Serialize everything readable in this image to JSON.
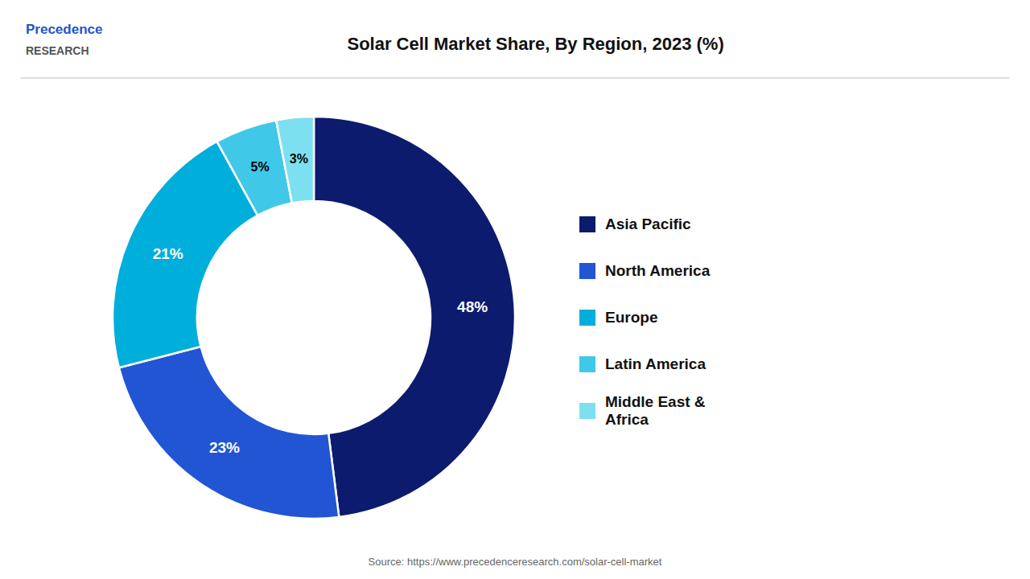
{
  "chart_data": {
    "type": "pie",
    "title": "Solar Cell Market Share, By Region, 2023 (%)",
    "categories": [
      "Asia Pacific",
      "North America",
      "Europe",
      "Latin America",
      "Middle East &\nAfrica"
    ],
    "values": [
      48,
      23,
      21,
      5,
      3
    ],
    "value_labels": [
      "48%",
      "23%",
      "21%",
      "5%",
      "3%"
    ],
    "colors": [
      "#0d1b6e",
      "#2255d4",
      "#00aedb",
      "#40c8e8",
      "#7de0f0"
    ],
    "data_labels": true,
    "legend": "right",
    "annotations": [
      "Precedence",
      "RESEARCH",
      "Source: https://www.precedenceresearch.com/solar-cell-market"
    ]
  }
}
